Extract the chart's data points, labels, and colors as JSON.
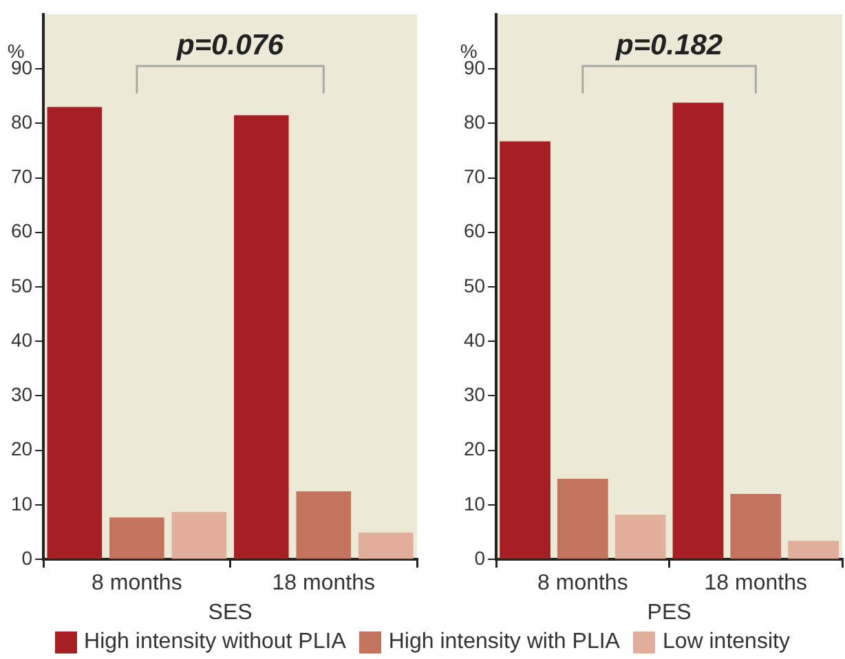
{
  "chart_data": [
    {
      "type": "bar",
      "xlabel": "SES",
      "ylabel": "%",
      "categories": [
        "8 months",
        "18 months"
      ],
      "series": [
        {
          "name": "High intensity without PLIA",
          "color": "#a51f24",
          "values": [
            83.0,
            81.5
          ]
        },
        {
          "name": "High intensity with PLIA",
          "color": "#c4735e",
          "values": [
            7.7,
            12.5
          ]
        },
        {
          "name": "Low intensity",
          "color": "#e0ae9b",
          "values": [
            8.7,
            4.9
          ]
        }
      ],
      "ylim": [
        0,
        100
      ],
      "yticks": [
        0,
        10,
        20,
        30,
        40,
        50,
        60,
        70,
        80,
        90
      ],
      "grid": false,
      "legend": "bottom",
      "annotations": [
        "p=0.076"
      ]
    },
    {
      "type": "bar",
      "xlabel": "PES",
      "ylabel": "%",
      "categories": [
        "8 months",
        "18 months"
      ],
      "series": [
        {
          "color": "#a51f24",
          "values": [
            76.7,
            83.8
          ]
        },
        {
          "color": "#c4735e",
          "values": [
            14.8,
            12.0
          ]
        },
        {
          "color": "#e0ae9b",
          "values": [
            8.2,
            3.4
          ]
        }
      ],
      "ylim": [
        0,
        100
      ],
      "yticks": [
        0,
        10,
        20,
        30,
        40,
        50,
        60,
        70,
        80,
        90
      ],
      "grid": false,
      "annotations": [
        "p=0.182"
      ]
    }
  ]
}
